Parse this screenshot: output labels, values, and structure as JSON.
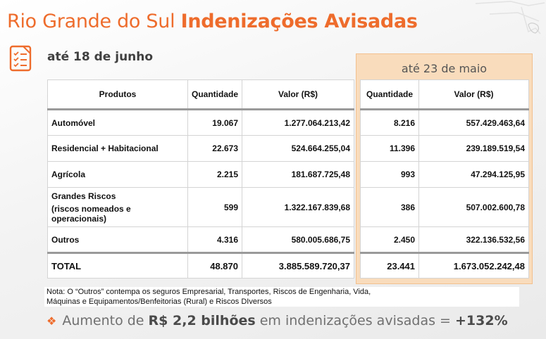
{
  "header": {
    "title_regular": "Rio Grande do Sul",
    "title_bold": "Indenizações Avisadas",
    "subtitle_june": "até 18 de junho",
    "label_may": "até 23 de maio"
  },
  "table_june": {
    "headers": [
      "Produtos",
      "Quantidade",
      "Valor (R$)"
    ],
    "rows": [
      {
        "product": "Automóvel",
        "product_line2": "",
        "qty": "19.067",
        "value": "1.277.064.213,42"
      },
      {
        "product": "Residencial + Habitacional",
        "product_line2": "",
        "qty": "22.673",
        "value": "524.664.255,04"
      },
      {
        "product": "Agrícola",
        "product_line2": "",
        "qty": "2.215",
        "value": "181.687.725,48"
      },
      {
        "product": "Grandes Riscos",
        "product_line2": "(riscos nomeados e operacionais)",
        "qty": "599",
        "value": "1.322.167.839,68"
      },
      {
        "product": "Outros",
        "product_line2": "",
        "qty": "4.316",
        "value": "580.005.686,75"
      }
    ],
    "total": {
      "label": "TOTAL",
      "qty": "48.870",
      "value": "3.885.589.720,37"
    }
  },
  "table_may": {
    "headers": [
      "Quantidade",
      "Valor (R$)"
    ],
    "rows": [
      {
        "qty": "8.216",
        "value": "557.429.463,64"
      },
      {
        "qty": "11.396",
        "value": "239.189.519,54"
      },
      {
        "qty": "993",
        "value": "47.294.125,95"
      },
      {
        "qty": "386",
        "value": "507.002.600,78"
      },
      {
        "qty": "2.450",
        "value": "322.136.532,56"
      }
    ],
    "total": {
      "qty": "23.441",
      "value": "1.673.052.242,48"
    }
  },
  "note": {
    "line1": "Nota: O “Outros” contempa os seguros Empresarial, Transportes, Riscos de Engenharia, Vida,",
    "line2": "Máquinas e Equipamentos/Benfeitorias (Rural) e Riscos DIversos"
  },
  "summary": {
    "prefix": "Aumento de",
    "amount": "R$ 2,2 bilhões",
    "middle": "em indenizações avisadas =",
    "percent": "+132%"
  },
  "colors": {
    "accent": "#ee6c2c",
    "may_panel": "#f9dcbc",
    "text": "#404040"
  },
  "icons": {
    "header_icon": "checklist-document-icon",
    "bullet": "diamond-bullet-icon"
  }
}
